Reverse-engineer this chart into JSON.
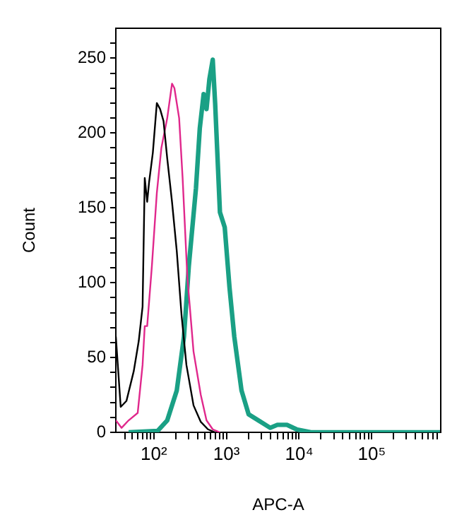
{
  "chart_data": {
    "type": "line",
    "xlabel": "APC-A",
    "ylabel": "Count",
    "log": "x",
    "grid": false,
    "legend": false,
    "marker": "none",
    "line_style": "solid",
    "xlim": [
      30,
      890000
    ],
    "ylim": [
      0,
      270
    ],
    "xticks": [
      {
        "value": 40,
        "label": null
      },
      {
        "value": 50,
        "label": null
      },
      {
        "value": 60,
        "label": null
      },
      {
        "value": 70,
        "label": null
      },
      {
        "value": 80,
        "label": null
      },
      {
        "value": 90,
        "label": null
      },
      {
        "value": 100,
        "label": "10²"
      },
      {
        "value": 200,
        "label": null
      },
      {
        "value": 300,
        "label": null
      },
      {
        "value": 400,
        "label": null
      },
      {
        "value": 500,
        "label": null
      },
      {
        "value": 600,
        "label": null
      },
      {
        "value": 700,
        "label": null
      },
      {
        "value": 800,
        "label": null
      },
      {
        "value": 900,
        "label": null
      },
      {
        "value": 1000,
        "label": "10³"
      },
      {
        "value": 2000,
        "label": null
      },
      {
        "value": 3000,
        "label": null
      },
      {
        "value": 4000,
        "label": null
      },
      {
        "value": 5000,
        "label": null
      },
      {
        "value": 6000,
        "label": null
      },
      {
        "value": 7000,
        "label": null
      },
      {
        "value": 8000,
        "label": null
      },
      {
        "value": 9000,
        "label": null
      },
      {
        "value": 10000,
        "label": "10⁴"
      },
      {
        "value": 20000,
        "label": null
      },
      {
        "value": 30000,
        "label": null
      },
      {
        "value": 40000,
        "label": null
      },
      {
        "value": 50000,
        "label": null
      },
      {
        "value": 60000,
        "label": null
      },
      {
        "value": 70000,
        "label": null
      },
      {
        "value": 80000,
        "label": null
      },
      {
        "value": 90000,
        "label": null
      },
      {
        "value": 100000,
        "label": "10⁵"
      },
      {
        "value": 200000,
        "label": null
      },
      {
        "value": 300000,
        "label": null
      },
      {
        "value": 400000,
        "label": null
      },
      {
        "value": 500000,
        "label": null
      },
      {
        "value": 600000,
        "label": null
      },
      {
        "value": 700000,
        "label": null
      },
      {
        "value": 800000,
        "label": null
      }
    ],
    "yticks": [
      0,
      {
        "value": 10,
        "label": null
      },
      {
        "value": 20,
        "label": null
      },
      {
        "value": 30,
        "label": null
      },
      {
        "value": 40,
        "label": null
      },
      50,
      {
        "value": 60,
        "label": null
      },
      {
        "value": 70,
        "label": null
      },
      {
        "value": 80,
        "label": null
      },
      {
        "value": 90,
        "label": null
      },
      100,
      {
        "value": 110,
        "label": null
      },
      {
        "value": 120,
        "label": null
      },
      {
        "value": 130,
        "label": null
      },
      {
        "value": 140,
        "label": null
      },
      150,
      {
        "value": 160,
        "label": null
      },
      {
        "value": 170,
        "label": null
      },
      {
        "value": 180,
        "label": null
      },
      {
        "value": 190,
        "label": null
      },
      200,
      {
        "value": 210,
        "label": null
      },
      {
        "value": 220,
        "label": null
      },
      {
        "value": 230,
        "label": null
      },
      {
        "value": 240,
        "label": null
      },
      250,
      {
        "value": 260,
        "label": null
      }
    ],
    "series": [
      {
        "color": "#000000",
        "x": [
          30,
          35,
          42,
          53,
          62,
          70,
          75,
          81,
          86,
          97,
          110,
          122,
          136,
          153,
          178,
          207,
          241,
          281,
          352,
          443,
          556,
          698
        ],
        "values": [
          64,
          17,
          21,
          41,
          61,
          84,
          170,
          154,
          167,
          187,
          220,
          216,
          208,
          183,
          154,
          121,
          78,
          45,
          18,
          7,
          2,
          0
        ]
      },
      {
        "color": "#e0288c",
        "x": [
          30,
          36,
          45,
          60,
          70,
          75,
          81,
          94,
          110,
          127,
          153,
          178,
          192,
          223,
          249,
          289,
          352,
          443,
          531,
          647,
          813
        ],
        "values": [
          8,
          3,
          8,
          13,
          45,
          71,
          71,
          111,
          160,
          190,
          210,
          233,
          230,
          210,
          170,
          104,
          54,
          25,
          8,
          2,
          0
        ]
      },
      {
        "color": "#1aa085",
        "x": [
          45,
          113,
          153,
          207,
          260,
          303,
          380,
          429,
          485,
          531,
          582,
          647,
          698,
          813,
          946,
          1100,
          1280,
          1610,
          2020,
          2740,
          4000,
          5020,
          6800,
          9200,
          14500,
          875000
        ],
        "values": [
          0,
          1,
          8,
          28,
          64,
          111,
          163,
          203,
          226,
          216,
          236,
          249,
          220,
          147,
          137,
          97,
          64,
          28,
          12,
          8,
          3,
          5,
          5,
          2,
          0,
          0
        ]
      }
    ]
  }
}
